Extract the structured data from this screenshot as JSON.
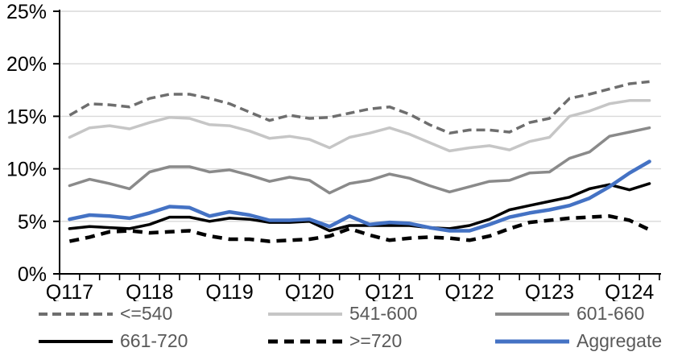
{
  "chart_data": {
    "type": "line",
    "title": "",
    "xlabel": "",
    "ylabel": "",
    "ylim": [
      0,
      25
    ],
    "ytick_step": 5,
    "ytick_labels": [
      "0%",
      "5%",
      "10%",
      "15%",
      "20%",
      "25%"
    ],
    "grid": "horizontal-gridlines",
    "gridline_color": "#D9D9D9",
    "axis_color": "#000000",
    "legend_position": "bottom",
    "x_categories": [
      "Q1 2017",
      "Q2 2017",
      "Q3 2017",
      "Q4 2017",
      "Q1 2018",
      "Q2 2018",
      "Q3 2018",
      "Q4 2018",
      "Q1 2019",
      "Q2 2019",
      "Q3 2019",
      "Q4 2019",
      "Q1 2020",
      "Q2 2020",
      "Q3 2020",
      "Q4 2020",
      "Q1 2021",
      "Q2 2021",
      "Q3 2021",
      "Q4 2021",
      "Q1 2022",
      "Q2 2022",
      "Q3 2022",
      "Q4 2022",
      "Q1 2023",
      "Q2 2023",
      "Q3 2023",
      "Q4 2023",
      "Q1 2024",
      "Q2 2024"
    ],
    "x_tick_labels": [
      "Q117",
      "Q118",
      "Q119",
      "Q120",
      "Q121",
      "Q122",
      "Q123",
      "Q124"
    ],
    "x_tick_label_indices": [
      0,
      4,
      8,
      12,
      16,
      20,
      24,
      28
    ],
    "series": [
      {
        "name": "<=540",
        "color": "#6E6E6E",
        "style": "dashed",
        "width": 3.5,
        "dash": "11 6",
        "values": [
          15.1,
          16.2,
          16.1,
          15.9,
          16.7,
          17.1,
          17.1,
          16.7,
          16.2,
          15.4,
          14.6,
          15.1,
          14.8,
          14.9,
          15.3,
          15.7,
          15.9,
          15.2,
          14.2,
          13.4,
          13.7,
          13.7,
          13.5,
          14.4,
          14.8,
          16.7,
          17.1,
          17.6,
          18.1,
          18.3
        ]
      },
      {
        "name": "541-600",
        "color": "#C6C6C6",
        "style": "solid",
        "width": 3.5,
        "dash": "",
        "values": [
          13.0,
          13.9,
          14.1,
          13.8,
          14.4,
          14.9,
          14.8,
          14.2,
          14.1,
          13.6,
          12.9,
          13.1,
          12.8,
          12.0,
          13.0,
          13.4,
          13.9,
          13.3,
          12.5,
          11.7,
          12.0,
          12.2,
          11.8,
          12.6,
          13.0,
          15.0,
          15.5,
          16.2,
          16.5,
          16.5
        ]
      },
      {
        "name": "601-660",
        "color": "#8A8A8A",
        "style": "solid",
        "width": 3.5,
        "dash": "",
        "values": [
          8.4,
          9.0,
          8.6,
          8.1,
          9.7,
          10.2,
          10.2,
          9.7,
          9.9,
          9.4,
          8.8,
          9.2,
          8.9,
          7.7,
          8.6,
          8.9,
          9.5,
          9.1,
          8.4,
          7.8,
          8.3,
          8.8,
          8.9,
          9.6,
          9.7,
          11.0,
          11.6,
          13.1,
          13.5,
          13.9
        ]
      },
      {
        "name": "661-720",
        "color": "#000000",
        "style": "solid",
        "width": 3.5,
        "dash": "",
        "values": [
          4.3,
          4.5,
          4.4,
          4.3,
          4.7,
          5.4,
          5.4,
          5.0,
          5.3,
          5.2,
          4.9,
          4.9,
          5.0,
          4.1,
          4.6,
          4.6,
          4.6,
          4.6,
          4.4,
          4.3,
          4.6,
          5.2,
          6.1,
          6.5,
          6.9,
          7.3,
          8.1,
          8.5,
          8.0,
          8.6
        ]
      },
      {
        "name": ">=720",
        "color": "#000000",
        "style": "dashed",
        "width": 4.5,
        "dash": "12 8",
        "values": [
          3.1,
          3.5,
          4.0,
          4.1,
          3.9,
          4.0,
          4.1,
          3.6,
          3.3,
          3.3,
          3.1,
          3.2,
          3.3,
          3.6,
          4.3,
          3.7,
          3.2,
          3.4,
          3.5,
          3.4,
          3.2,
          3.6,
          4.3,
          4.9,
          5.1,
          5.3,
          5.4,
          5.5,
          5.1,
          4.2
        ]
      },
      {
        "name": "Aggregate",
        "color": "#4472C4",
        "style": "solid",
        "width": 4.5,
        "dash": "",
        "values": [
          5.2,
          5.6,
          5.5,
          5.3,
          5.8,
          6.4,
          6.3,
          5.5,
          5.9,
          5.6,
          5.1,
          5.1,
          5.2,
          4.5,
          5.5,
          4.7,
          4.9,
          4.8,
          4.4,
          4.1,
          4.1,
          4.7,
          5.4,
          5.8,
          6.1,
          6.5,
          7.2,
          8.3,
          9.6,
          10.7
        ]
      }
    ]
  },
  "legend": {
    "items": [
      {
        "label": "<=540"
      },
      {
        "label": "541-600"
      },
      {
        "label": "601-660"
      },
      {
        "label": "661-720"
      },
      {
        "label": ">=720"
      },
      {
        "label": "Aggregate"
      }
    ]
  }
}
